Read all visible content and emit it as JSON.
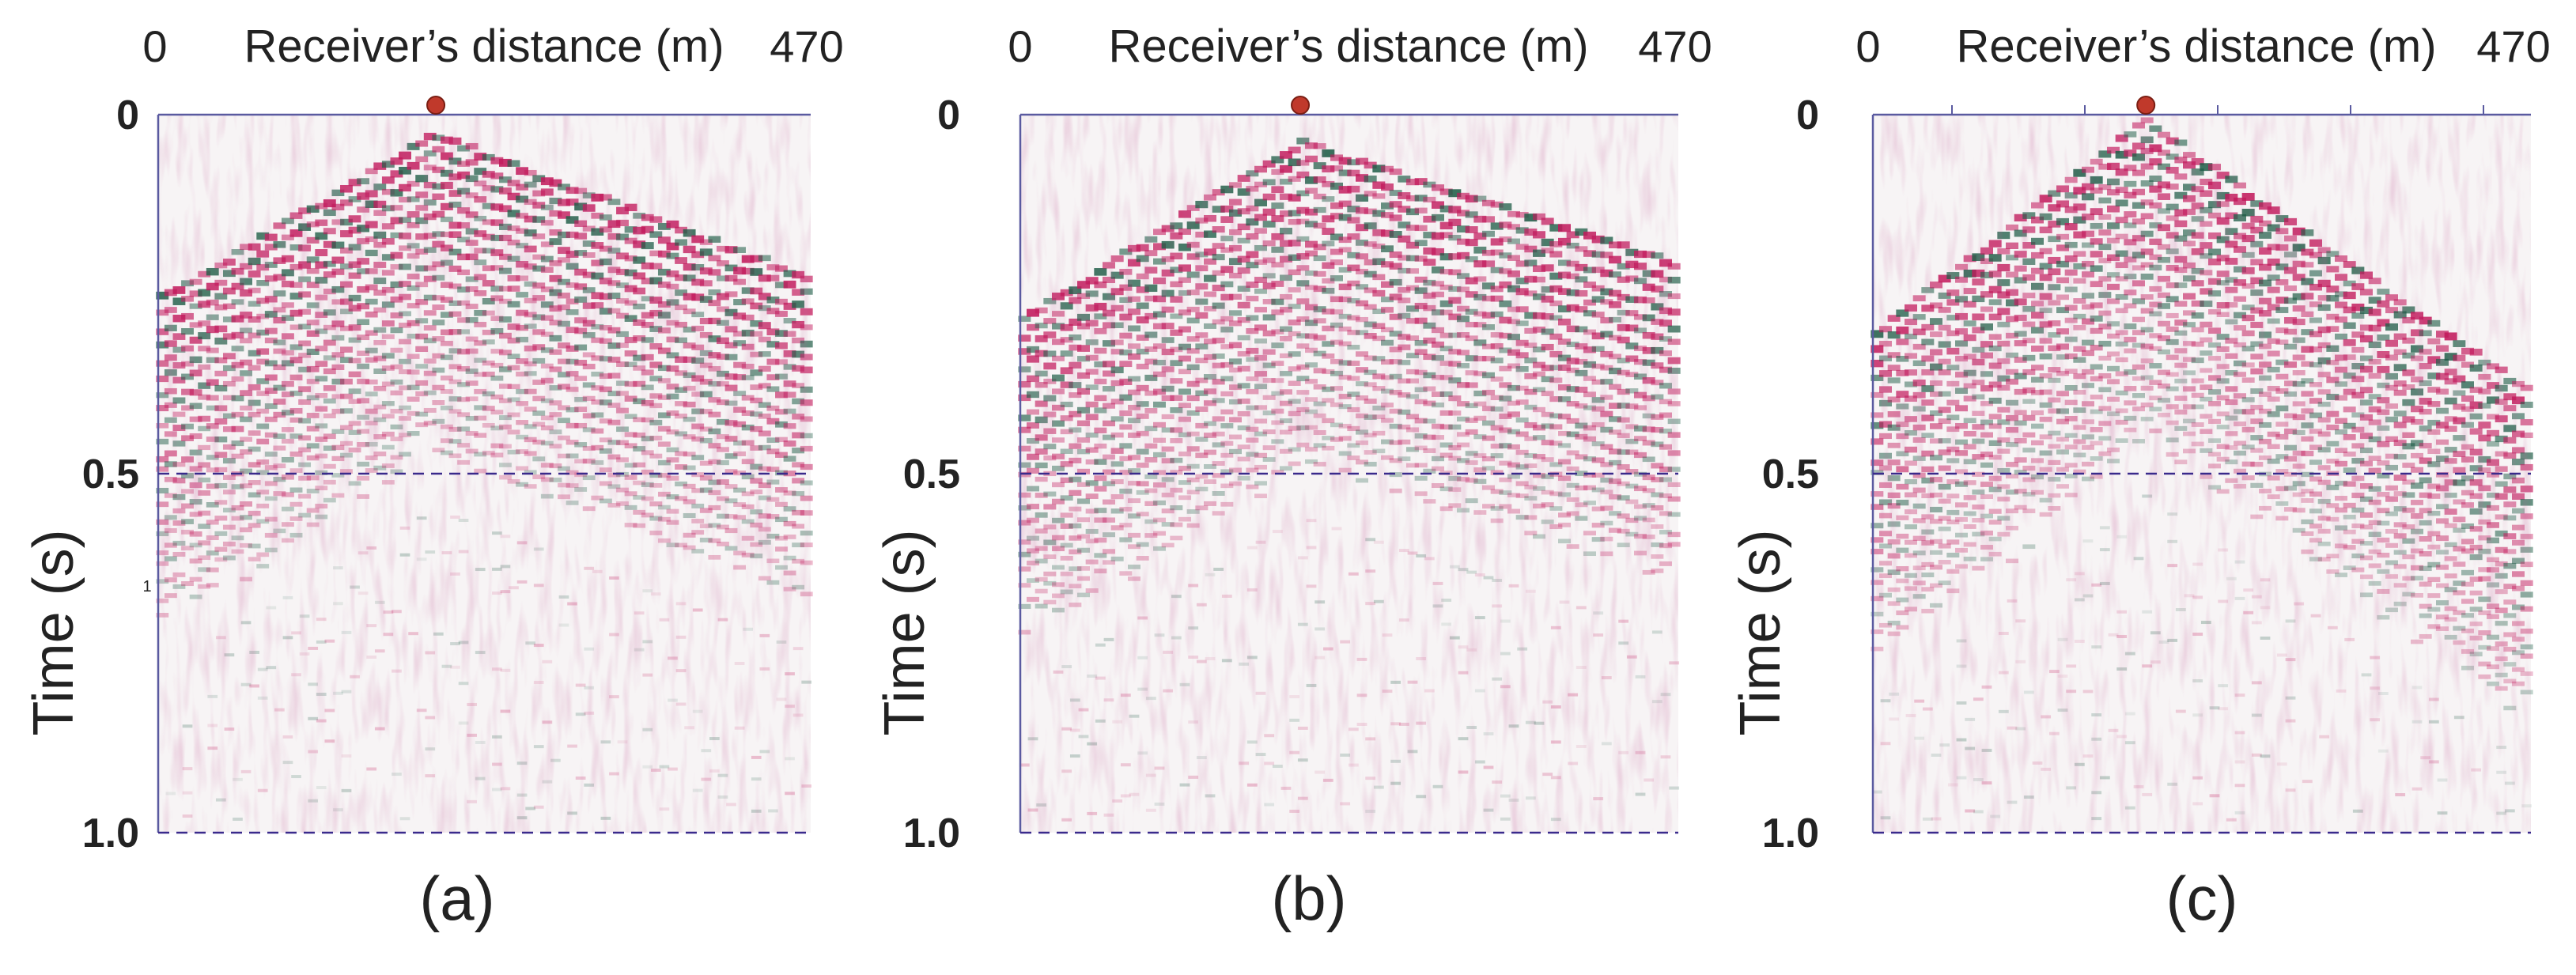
{
  "colors": {
    "positive": "#c2185b",
    "negative": "#1e5c46",
    "shot": "#c0392b",
    "guide": "#3a2a8c",
    "frame": "#5a5aa0"
  },
  "chart_data": [
    {
      "type": "heatmap",
      "panel_label": "(a)",
      "title": "Receiver's distance (m)",
      "xlabel": "Receiver’s distance (m)",
      "ylabel": "Time (s)",
      "x_tick_labels": [
        "0",
        "470"
      ],
      "y_tick_labels": [
        "0",
        "0.5",
        "1.0"
      ],
      "xlim": [
        0,
        470
      ],
      "ylim": [
        0,
        1.0
      ],
      "shot_position_m": 200,
      "dashed_lines_s": [
        0.5,
        1.0
      ],
      "stray_label": "1",
      "first_break_apex_s": 0.02,
      "first_break_at_0m_s": 0.25,
      "first_break_at_470m_s": 0.22
    },
    {
      "type": "heatmap",
      "panel_label": "(b)",
      "title": "Receiver's distance (m)",
      "xlabel": "Receiver’s distance (m)",
      "ylabel": "Time (s)",
      "x_tick_labels": [
        "0",
        "470"
      ],
      "y_tick_labels": [
        "0",
        "0.5",
        "1.0"
      ],
      "xlim": [
        0,
        470
      ],
      "ylim": [
        0,
        1.0
      ],
      "shot_position_m": 200,
      "dashed_lines_s": [
        0.5,
        1.0
      ],
      "first_break_apex_s": 0.03,
      "first_break_at_0m_s": 0.28,
      "first_break_at_470m_s": 0.2
    },
    {
      "type": "heatmap",
      "panel_label": "(c)",
      "title": "Receiver's distance (m)",
      "xlabel": "Receiver’s distance (m)",
      "ylabel": "Time (s)",
      "x_tick_labels": [
        "0",
        "470"
      ],
      "y_tick_labels": [
        "0",
        "0.5",
        "1.0"
      ],
      "xlim": [
        0,
        470
      ],
      "ylim": [
        0,
        1.0
      ],
      "shot_position_m": 195,
      "dashed_lines_s": [
        0.5,
        1.0
      ],
      "first_break_apex_s": 0.0,
      "first_break_at_0m_s": 0.3,
      "first_break_at_470m_s": 0.38
    }
  ]
}
